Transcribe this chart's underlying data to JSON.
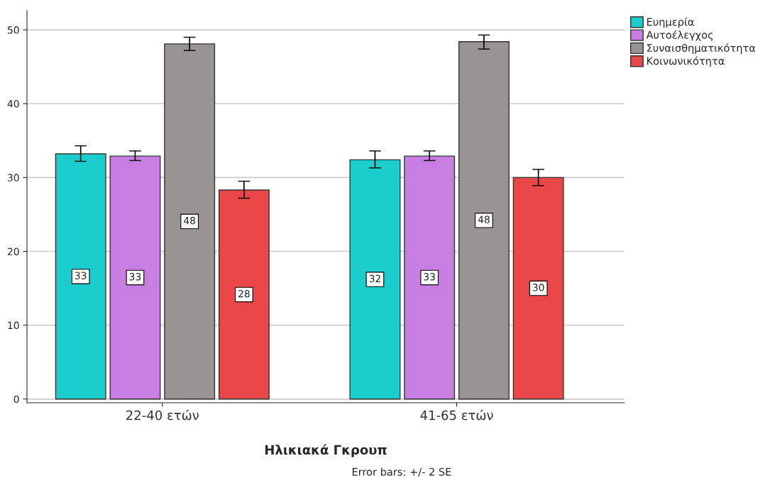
{
  "chart_data": {
    "type": "bar",
    "xlabel": "Ηλικιακά Γκρουπ",
    "categories": [
      "22-40 ετών",
      "41-65 ετών"
    ],
    "series": [
      {
        "name": "Ευημερία",
        "color": "#1ccdcd",
        "values": [
          33.2,
          32.4
        ],
        "errors": [
          [
            32.2,
            34.3
          ],
          [
            31.3,
            33.6
          ]
        ],
        "value_labels": [
          "33",
          "32"
        ]
      },
      {
        "name": "Αυτοέλεγχος",
        "color": "#c87de0",
        "values": [
          32.9,
          32.9
        ],
        "errors": [
          [
            32.3,
            33.6
          ],
          [
            32.3,
            33.6
          ]
        ],
        "value_labels": [
          "33",
          "33"
        ]
      },
      {
        "name": "Συναισθηματικότητα",
        "color": "#989494",
        "values": [
          48.1,
          48.4
        ],
        "errors": [
          [
            47.2,
            49.0
          ],
          [
            47.4,
            49.3
          ]
        ],
        "value_labels": [
          "48",
          "48"
        ]
      },
      {
        "name": "Κοινωνικότητα",
        "color": "#ea4848",
        "values": [
          28.3,
          30.0
        ],
        "errors": [
          [
            27.2,
            29.5
          ],
          [
            28.9,
            31.1
          ]
        ],
        "value_labels": [
          "28",
          "30"
        ]
      }
    ],
    "ylim": [
      -0.5,
      52.6
    ],
    "yticks": [
      0,
      10,
      20,
      30,
      40,
      50
    ],
    "grid": "y",
    "legend": "top right",
    "annotations": [
      "Error bars: +/- 2 SE"
    ]
  }
}
